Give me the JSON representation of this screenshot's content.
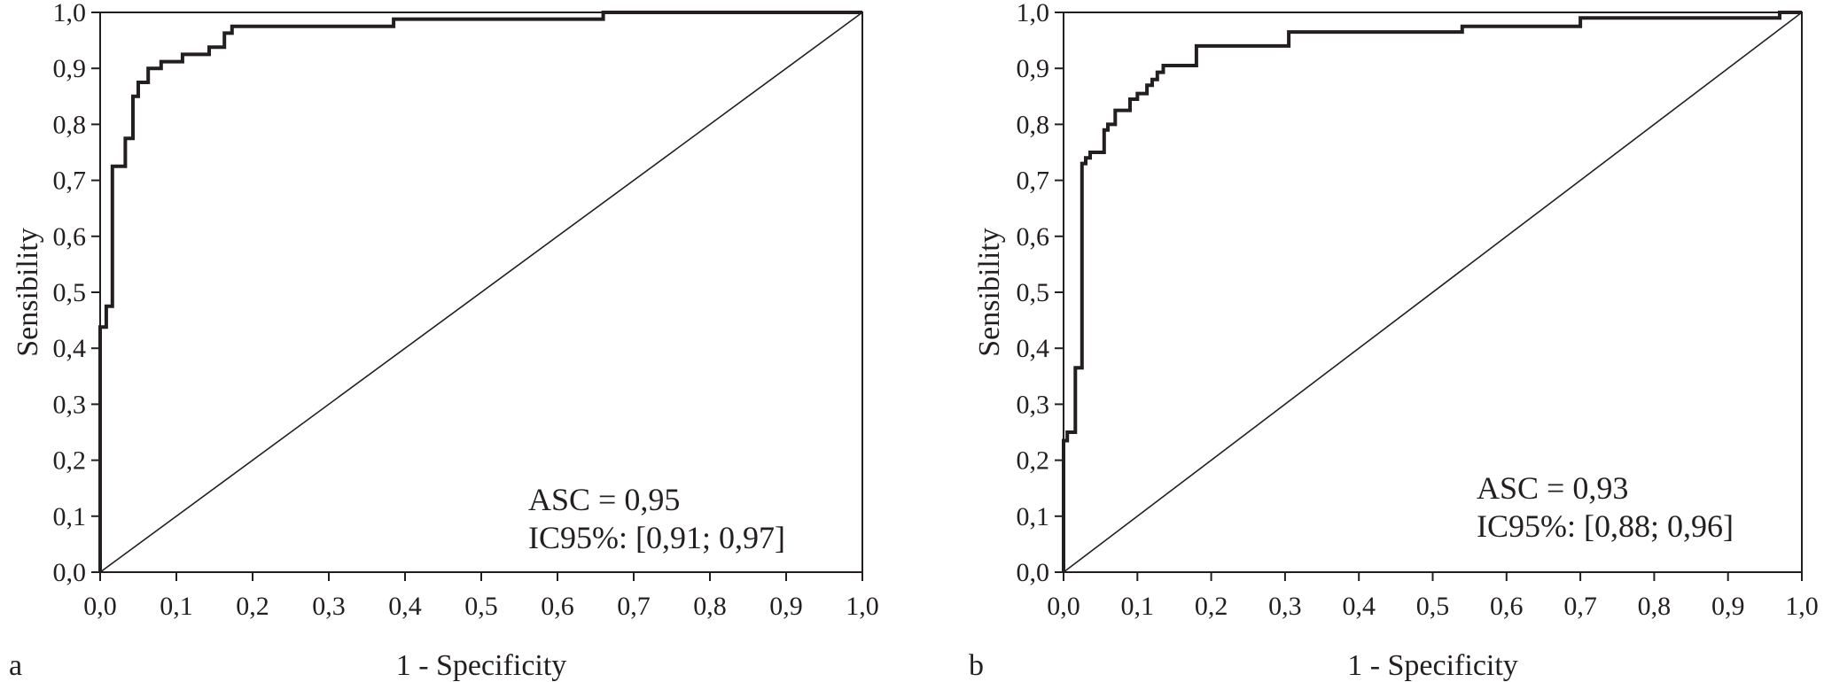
{
  "colors": {
    "ink": "#231f20",
    "background": "#ffffff"
  },
  "chart_data": [
    {
      "type": "line",
      "panel_label": "a",
      "xlabel": "1 - Specificity",
      "ylabel": "Sensibility",
      "xlim": [
        0,
        1
      ],
      "ylim": [
        0,
        1
      ],
      "x_ticks": [
        "0,0",
        "0,1",
        "0,2",
        "0,3",
        "0,4",
        "0,5",
        "0,6",
        "0,7",
        "0,8",
        "0,9",
        "1,0"
      ],
      "y_ticks": [
        "0,0",
        "0,1",
        "0,2",
        "0,3",
        "0,4",
        "0,5",
        "0,6",
        "0,7",
        "0,8",
        "0,9",
        "1,0"
      ],
      "annotation": {
        "line1": "ASC =  0,95",
        "line2": "IC95%: [0,91; 0,97]"
      },
      "series": [
        {
          "role": "roc",
          "points": [
            [
              0,
              0
            ],
            [
              0,
              0.438
            ],
            [
              0.008,
              0.438
            ],
            [
              0.008,
              0.475
            ],
            [
              0.016,
              0.475
            ],
            [
              0.016,
              0.725
            ],
            [
              0.033,
              0.725
            ],
            [
              0.033,
              0.775
            ],
            [
              0.043,
              0.775
            ],
            [
              0.043,
              0.85
            ],
            [
              0.05,
              0.85
            ],
            [
              0.05,
              0.875
            ],
            [
              0.063,
              0.875
            ],
            [
              0.063,
              0.9
            ],
            [
              0.08,
              0.9
            ],
            [
              0.08,
              0.912
            ],
            [
              0.108,
              0.912
            ],
            [
              0.108,
              0.925
            ],
            [
              0.143,
              0.925
            ],
            [
              0.143,
              0.938
            ],
            [
              0.163,
              0.938
            ],
            [
              0.163,
              0.963
            ],
            [
              0.173,
              0.963
            ],
            [
              0.173,
              0.975
            ],
            [
              0.385,
              0.975
            ],
            [
              0.385,
              0.988
            ],
            [
              0.66,
              0.988
            ],
            [
              0.66,
              1.0
            ],
            [
              1.0,
              1.0
            ]
          ]
        },
        {
          "role": "reference",
          "points": [
            [
              0,
              0
            ],
            [
              1,
              1
            ]
          ]
        }
      ]
    },
    {
      "type": "line",
      "panel_label": "b",
      "xlabel": "1 - Specificity",
      "ylabel": "Sensibility",
      "xlim": [
        0,
        1
      ],
      "ylim": [
        0,
        1
      ],
      "x_ticks": [
        "0,0",
        "0,1",
        "0,2",
        "0,3",
        "0,4",
        "0,5",
        "0,6",
        "0,7",
        "0,8",
        "0,9",
        "1,0"
      ],
      "y_ticks": [
        "0,0",
        "0,1",
        "0,2",
        "0,3",
        "0,4",
        "0,5",
        "0,6",
        "0,7",
        "0,8",
        "0,9",
        "1,0"
      ],
      "annotation": {
        "line1": "ASC =  0,93",
        "line2": "IC95%: [0,88; 0,96]"
      },
      "series": [
        {
          "role": "roc",
          "points": [
            [
              0,
              0
            ],
            [
              0,
              0.235
            ],
            [
              0.005,
              0.235
            ],
            [
              0.005,
              0.25
            ],
            [
              0.016,
              0.25
            ],
            [
              0.016,
              0.365
            ],
            [
              0.025,
              0.365
            ],
            [
              0.025,
              0.73
            ],
            [
              0.03,
              0.73
            ],
            [
              0.03,
              0.74
            ],
            [
              0.036,
              0.74
            ],
            [
              0.036,
              0.75
            ],
            [
              0.055,
              0.75
            ],
            [
              0.055,
              0.79
            ],
            [
              0.06,
              0.79
            ],
            [
              0.06,
              0.8
            ],
            [
              0.07,
              0.8
            ],
            [
              0.07,
              0.825
            ],
            [
              0.09,
              0.825
            ],
            [
              0.09,
              0.845
            ],
            [
              0.1,
              0.845
            ],
            [
              0.1,
              0.855
            ],
            [
              0.113,
              0.855
            ],
            [
              0.113,
              0.87
            ],
            [
              0.12,
              0.87
            ],
            [
              0.12,
              0.88
            ],
            [
              0.127,
              0.88
            ],
            [
              0.127,
              0.893
            ],
            [
              0.135,
              0.893
            ],
            [
              0.135,
              0.905
            ],
            [
              0.18,
              0.905
            ],
            [
              0.18,
              0.94
            ],
            [
              0.305,
              0.94
            ],
            [
              0.305,
              0.965
            ],
            [
              0.54,
              0.965
            ],
            [
              0.54,
              0.975
            ],
            [
              0.7,
              0.975
            ],
            [
              0.7,
              0.99
            ],
            [
              0.97,
              0.99
            ],
            [
              0.97,
              1.0
            ],
            [
              1.0,
              1.0
            ]
          ]
        },
        {
          "role": "reference",
          "points": [
            [
              0,
              0
            ],
            [
              1,
              1
            ]
          ]
        }
      ]
    }
  ]
}
